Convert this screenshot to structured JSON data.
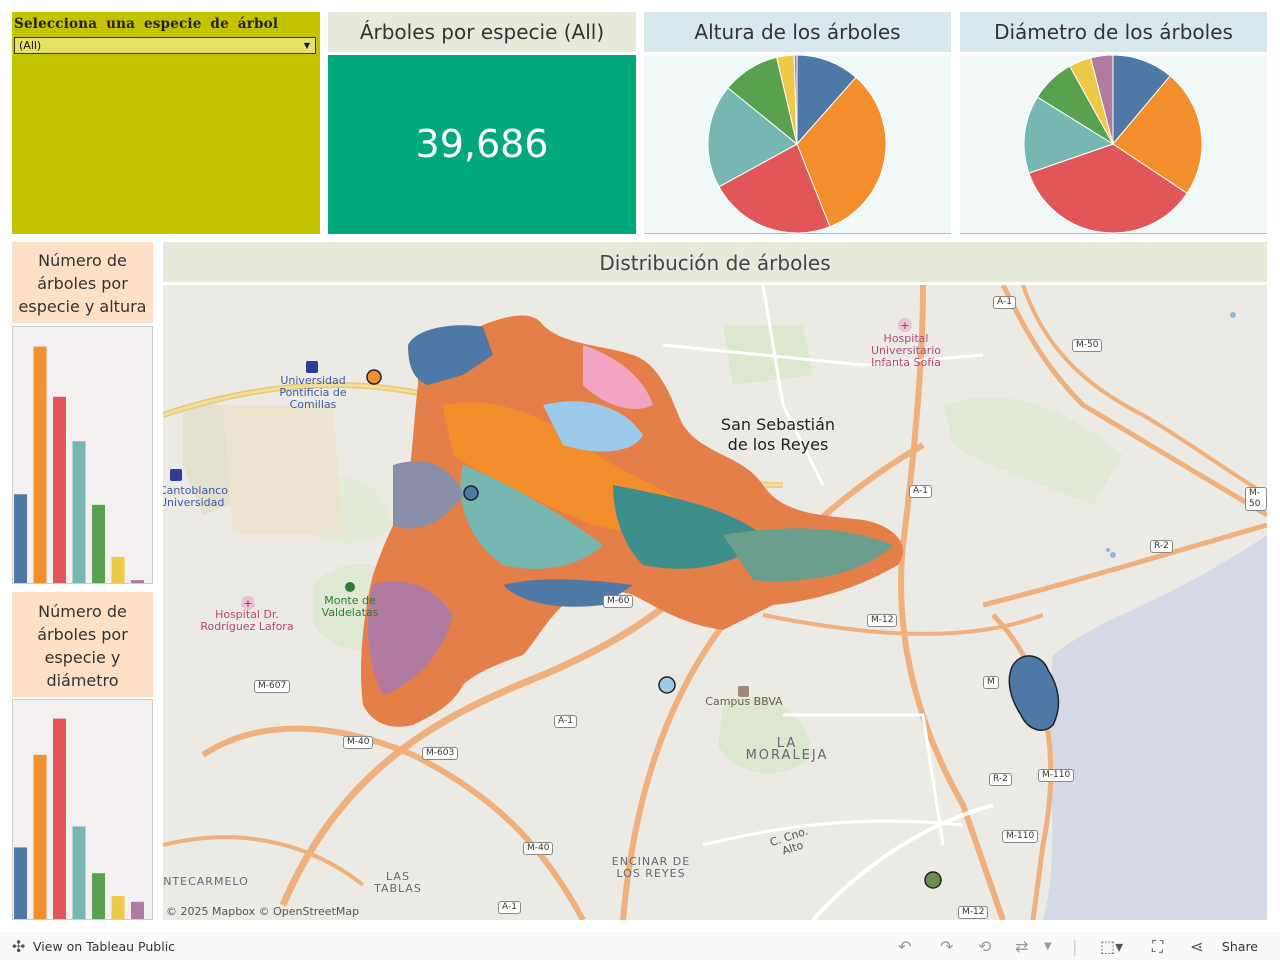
{
  "filter": {
    "title": "Selecciona una especie de árbol",
    "selected": "(All)"
  },
  "kpi": {
    "title": "Árboles por especie (All)",
    "value": "39,686"
  },
  "height_chart": {
    "title": "Altura de los árboles"
  },
  "diameter_chart": {
    "title": "Diámetro de los árboles"
  },
  "bar_height": {
    "title": "Número de árboles por especie y altura"
  },
  "bar_diameter": {
    "title": "Número de árboles por especie y diámetro"
  },
  "map": {
    "title": "Distribución de árboles",
    "attribution": "© 2025 Mapbox  © OpenStreetMap",
    "place_labels": {
      "san_sebastian_1": "San Sebastián",
      "san_sebastian_2": "de los Reyes",
      "hospital_infanta": "Hospital Universitario Infanta Sofía",
      "comillas": "Universidad Pontificia de Comillas",
      "cantoblanco": "Cantoblanco Universidad",
      "hospital_lafora": "Hospital Dr. Rodríguez Lafora",
      "valdelatas": "Monte de Valdelatas",
      "campus_bbva": "Campus BBVA",
      "la_moraleja": "LA MORALEJA",
      "encinar": "ENCINAR DE LOS REYES",
      "las_tablas": "LAS TABLAS",
      "montecarmelo": "NTECARMELO",
      "camino_alto": "C. Cno. Alto"
    },
    "road_shields": [
      "A-1",
      "M-50",
      "A-1",
      "M-50",
      "R-2",
      "M-12",
      "M-607",
      "M-40",
      "M-603",
      "A-1",
      "M-40",
      "A-1",
      "M-60",
      "M-110",
      "M-110",
      "R-2",
      "M-12",
      "M"
    ]
  },
  "footer": {
    "view_label": "View on Tableau Public",
    "share_label": "Share"
  },
  "colors": {
    "series": [
      "#4e79a7",
      "#f28e2b",
      "#e15759",
      "#76b7b2",
      "#59a14f",
      "#edc948",
      "#b07aa1"
    ],
    "filter_bg": "#c3c300",
    "kpi_bg": "#00a87b"
  },
  "chart_data": [
    {
      "type": "pie",
      "title": "Altura de los árboles",
      "values": [
        11,
        31,
        22,
        18,
        10,
        3,
        0.5
      ]
    },
    {
      "type": "pie",
      "title": "Diámetro de los árboles",
      "values": [
        11,
        23,
        35,
        14,
        8,
        4,
        4
      ]
    },
    {
      "type": "bar",
      "title": "Número de árboles por especie y altura",
      "values": [
        92,
        245,
        193,
        147,
        81,
        27,
        3
      ]
    },
    {
      "type": "bar",
      "title": "Número de árboles por especie y diámetro",
      "values": [
        75,
        172,
        210,
        97,
        48,
        24,
        18
      ]
    }
  ]
}
